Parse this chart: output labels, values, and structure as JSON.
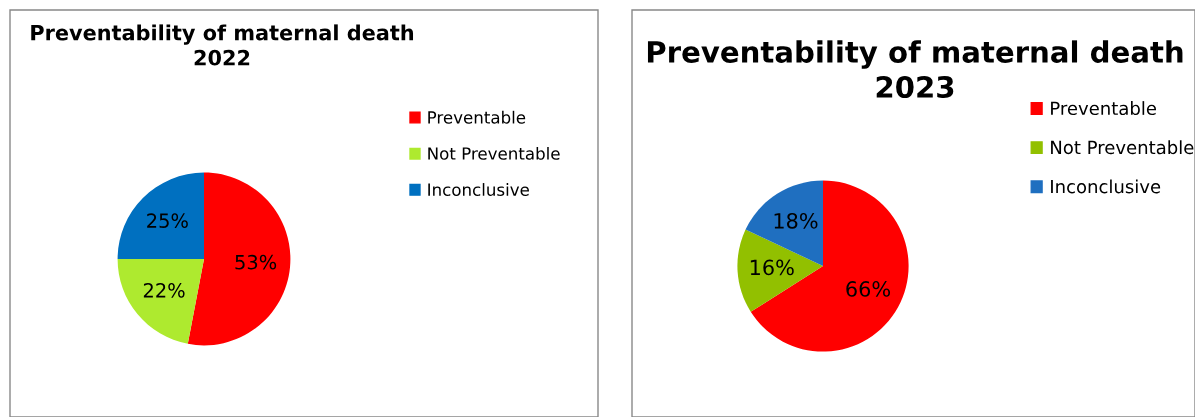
{
  "chart_data": [
    {
      "type": "pie",
      "title": "Preventability of maternal death 2022",
      "categories": [
        "Preventable",
        "Not Preventable",
        "Inconclusive"
      ],
      "values": [
        53,
        22,
        25
      ],
      "colors": [
        "#ff0000",
        "#aeea2f",
        "#0070c0"
      ],
      "value_labels": [
        "53%",
        "22%",
        "25%"
      ],
      "legend": "right"
    },
    {
      "type": "pie",
      "title": "Preventability of maternal death 2023",
      "categories": [
        "Preventable",
        "Not Preventable",
        "Inconclusive"
      ],
      "values": [
        66,
        16,
        18
      ],
      "colors": [
        "#ff0000",
        "#92c000",
        "#1f6fc0"
      ],
      "value_labels": [
        "66%",
        "16%",
        "18%"
      ],
      "legend": "right"
    }
  ]
}
